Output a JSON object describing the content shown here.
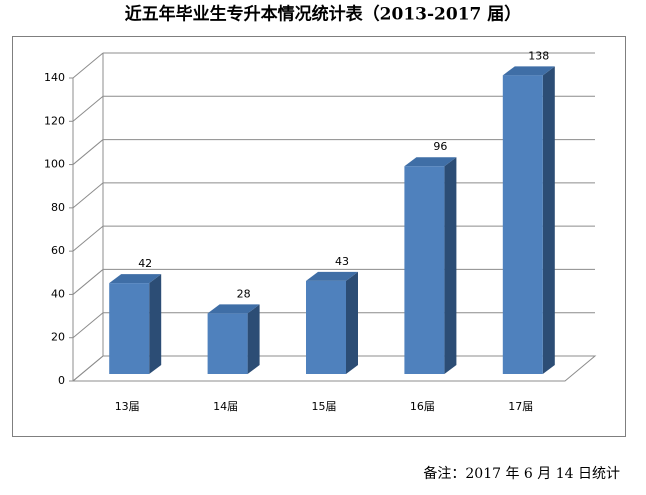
{
  "chart_data": {
    "type": "bar",
    "title": "近五年毕业生专升本情况统计表（2013-2017 届）",
    "categories": [
      "13届",
      "14届",
      "15届",
      "16届",
      "17届"
    ],
    "values": [
      42,
      28,
      43,
      96,
      138
    ],
    "color": "#4f81bd",
    "ylim": [
      0,
      140
    ],
    "yticks": [
      0,
      20,
      40,
      60,
      80,
      100,
      120,
      140
    ],
    "grid": true
  },
  "note": "备注：2017 年 6 月 14 日统计"
}
